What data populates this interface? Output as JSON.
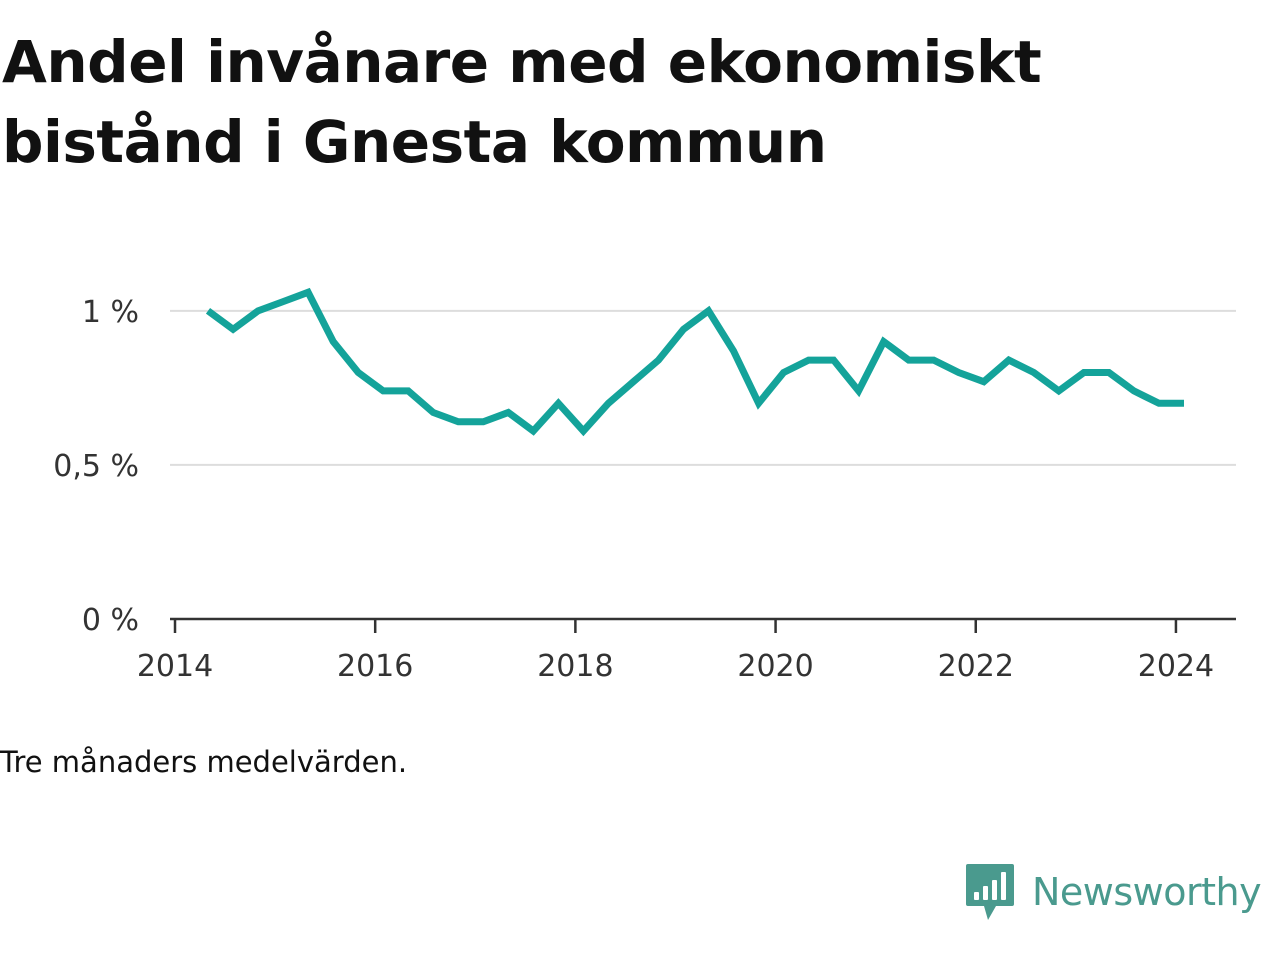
{
  "title": "Andel invånare med ekonomiskt bistånd i Gnesta kommun",
  "note": "Tre månaders medelvärden.",
  "brand": {
    "name": "Newsworthy",
    "icon": "newsworthy-bar-chart-icon",
    "color": "#4a9a8e"
  },
  "colors": {
    "line": "#14a39a",
    "grid": "#dddddd",
    "axis": "#333333",
    "text": "#333333"
  },
  "chart_data": {
    "type": "line",
    "title": "Andel invånare med ekonomiskt bistånd i Gnesta kommun",
    "xlabel": "",
    "ylabel": "",
    "xlim": [
      2013.95,
      2024.6
    ],
    "ylim": [
      0,
      1.1
    ],
    "x_ticks": [
      2014,
      2016,
      2018,
      2020,
      2022,
      2024
    ],
    "x_tick_labels": [
      "2014",
      "2016",
      "2018",
      "2020",
      "2022",
      "2024"
    ],
    "y_ticks": [
      0,
      0.5,
      1
    ],
    "y_tick_labels": [
      "0 %",
      "0,5 %",
      "1 %"
    ],
    "grid": "horizontal",
    "x": [
      2014.33,
      2014.58,
      2014.83,
      2015.08,
      2015.33,
      2015.58,
      2015.83,
      2016.08,
      2016.33,
      2016.58,
      2016.83,
      2017.08,
      2017.33,
      2017.58,
      2017.83,
      2018.08,
      2018.33,
      2018.58,
      2018.83,
      2019.08,
      2019.33,
      2019.58,
      2019.83,
      2020.08,
      2020.33,
      2020.58,
      2020.83,
      2021.08,
      2021.33,
      2021.58,
      2021.83,
      2022.08,
      2022.33,
      2022.58,
      2022.83,
      2023.08,
      2023.33,
      2023.58,
      2023.83,
      2024.08
    ],
    "series": [
      {
        "values": [
          1.0,
          0.94,
          1.0,
          1.03,
          1.06,
          0.9,
          0.8,
          0.74,
          0.74,
          0.67,
          0.64,
          0.64,
          0.67,
          0.61,
          0.7,
          0.61,
          0.7,
          0.77,
          0.84,
          0.94,
          1.0,
          0.87,
          0.7,
          0.8,
          0.84,
          0.84,
          0.74,
          0.9,
          0.84,
          0.84,
          0.8,
          0.77,
          0.84,
          0.8,
          0.74,
          0.8,
          0.8,
          0.74,
          0.7,
          0.7
        ]
      }
    ]
  }
}
